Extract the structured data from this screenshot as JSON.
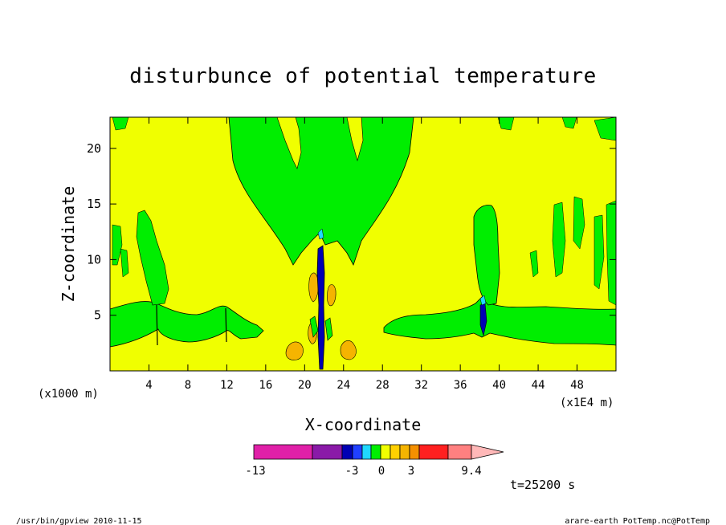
{
  "chart_data": {
    "type": "heatmap",
    "subtype": "filled-contour",
    "title": "disturbunce of potential temperature",
    "xlabel": "X-coordinate",
    "ylabel": "Z-coordinate",
    "x_unit_left": "(x1000 m)",
    "x_unit_right": "(x1E4 m)",
    "xlim": [
      0,
      52
    ],
    "ylim": [
      0,
      22.8
    ],
    "xticks": [
      "4",
      "8",
      "12",
      "16",
      "20",
      "24",
      "28",
      "32",
      "36",
      "40",
      "44",
      "48"
    ],
    "xtick_values": [
      4,
      8,
      12,
      16,
      20,
      24,
      28,
      32,
      36,
      40,
      44,
      48
    ],
    "yticks": [
      "5",
      "10",
      "15",
      "20"
    ],
    "ytick_values": [
      5,
      10,
      15,
      20
    ],
    "time_label": "t=25200 s",
    "colorbar": {
      "labels": [
        "-13",
        "-3",
        "0",
        "3",
        "9.4"
      ],
      "colors": [
        "#e020a8",
        "#8a1aa8",
        "#0000b4",
        "#2040ff",
        "#20d8ff",
        "#00ee00",
        "#f0ff00",
        "#ffd000",
        "#f5b400",
        "#f59000",
        "#ff2020",
        "#ff8080",
        "#ffb8b8"
      ]
    },
    "background_color": "#f0ff00",
    "regions": [
      {
        "name": "upper-green-plume",
        "level": "green",
        "x_range": [
          12,
          31
        ],
        "z_range": [
          9,
          22.8
        ]
      },
      {
        "name": "left-green-band",
        "level": "green",
        "x_range": [
          0,
          15.5
        ],
        "z_range": [
          2.5,
          6
        ]
      },
      {
        "name": "right-green-band",
        "level": "green",
        "x_range": [
          28,
          52
        ],
        "z_range": [
          2.5,
          6
        ]
      },
      {
        "name": "right-green-column",
        "level": "green",
        "x_range": [
          36,
          39
        ],
        "z_range": [
          3,
          15
        ]
      },
      {
        "name": "center-orange-cells",
        "level": "orange",
        "x_range": [
          18.5,
          24.5
        ],
        "z_range": [
          1,
          10.5
        ]
      }
    ]
  },
  "footer": {
    "left": "/usr/bin/gpview  2010-11-15",
    "right": "arare-earth_PotTemp.nc@PotTemp"
  }
}
